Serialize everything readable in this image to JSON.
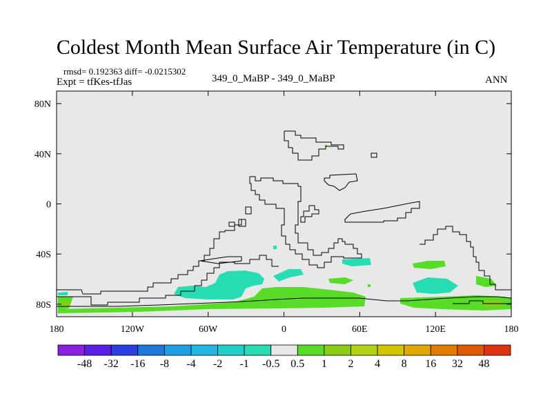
{
  "title": "Coldest Month Mean Surface Air Temperature (in C)",
  "stats": "rmsd= 0.192363 diff= -0.0215302",
  "expt": "Expt = tfKes-tfJas",
  "case_name": "349_0_MaBP - 349_0_MaBP",
  "season": "ANN",
  "colors": {
    "background": "#e8e8e8",
    "land_outline": "#000000"
  },
  "map": {
    "lon_range": [
      -180,
      180
    ],
    "lat_range": [
      -90,
      90
    ],
    "x_ticks": [
      {
        "lon": -180,
        "label": "180"
      },
      {
        "lon": -120,
        "label": "120W"
      },
      {
        "lon": -60,
        "label": "60W"
      },
      {
        "lon": 0,
        "label": "0"
      },
      {
        "lon": 60,
        "label": "60E"
      },
      {
        "lon": 120,
        "label": "120E"
      },
      {
        "lon": 180,
        "label": "180"
      }
    ],
    "y_ticks": [
      {
        "lat": 80,
        "label": "80N"
      },
      {
        "lat": 40,
        "label": "40N"
      },
      {
        "lat": 0,
        "label": "0"
      },
      {
        "lat": -40,
        "label": "40S"
      },
      {
        "lat": -80,
        "label": "80S"
      }
    ]
  },
  "colorbar": {
    "colors": [
      "#8a1fe0",
      "#5a1ee6",
      "#2a3fe0",
      "#1e78dc",
      "#1ea0e6",
      "#22b6e2",
      "#20d0c8",
      "#28dcb4",
      "#e8e8e8",
      "#58dc28",
      "#8ccc14",
      "#b4d214",
      "#d2c400",
      "#e0a800",
      "#e07c00",
      "#e05800",
      "#e03210"
    ],
    "labels": [
      "-48",
      "-32",
      "-16",
      "-8",
      "-4",
      "-2",
      "-1",
      "-0.5",
      "0.5",
      "1",
      "2",
      "4",
      "8",
      "16",
      "32",
      "48"
    ]
  }
}
